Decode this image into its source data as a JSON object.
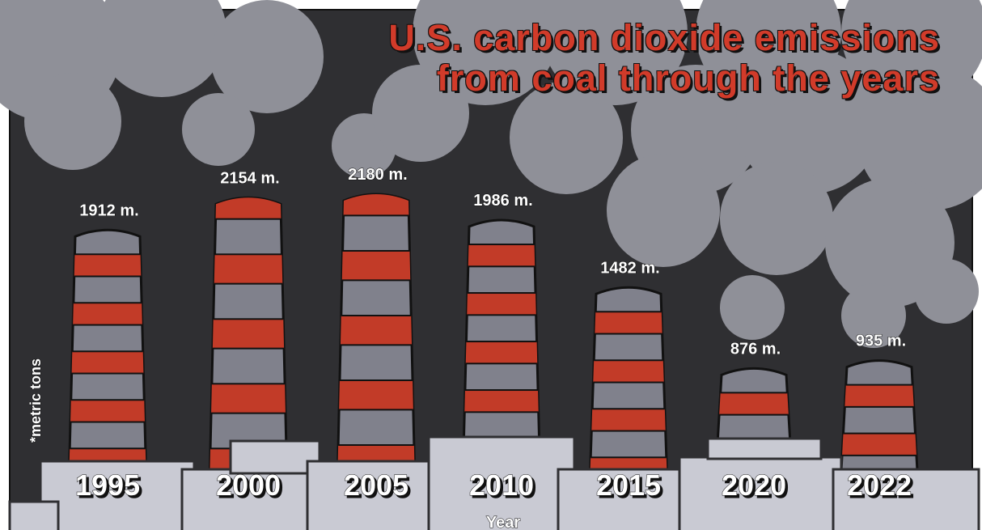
{
  "chart_data": {
    "type": "chimney",
    "title": "U.S. carbon dioxide emissions from coal through the years",
    "note": "*metric tons",
    "x_label": "Year",
    "categories": [
      "1995",
      "2000",
      "2005",
      "2010",
      "2015",
      "2020",
      "2022"
    ],
    "values": [
      1912,
      2154,
      2180,
      1986,
      1482,
      876,
      935
    ],
    "value_labels": [
      "1912 m.",
      "2154 m.",
      "2180 m.",
      "1986 m.",
      "1482 m.",
      "876 m.",
      "935 m."
    ],
    "color": "#80818c",
    "stripe_color": "#c23b28"
  }
}
